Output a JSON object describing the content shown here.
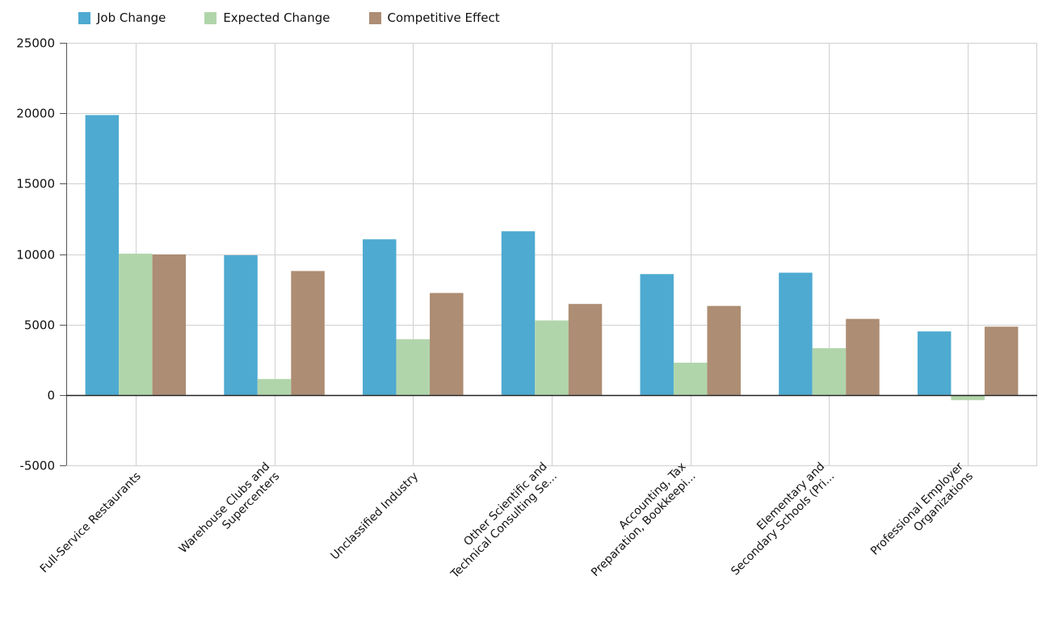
{
  "chart_data": {
    "type": "bar",
    "title": "",
    "xlabel": "",
    "ylabel": "",
    "ylim": [
      -5000,
      25000
    ],
    "yticks": [
      -5000,
      0,
      5000,
      10000,
      15000,
      20000,
      25000
    ],
    "grid": true,
    "legend_position": "top-left",
    "categories": [
      [
        "Full-Service Restaurants"
      ],
      [
        "Warehouse Clubs and",
        "Supercenters"
      ],
      [
        "Unclassified Industry"
      ],
      [
        "Other Scientific and",
        "Technical Consulting Se..."
      ],
      [
        "Accounting, Tax",
        "Preparation, Bookkeepi..."
      ],
      [
        "Elementary and",
        "Secondary Schools (Pri..."
      ],
      [
        "Professional Employer",
        "Organizations"
      ]
    ],
    "series": [
      {
        "name": "Job Change",
        "color": "#4eaad1",
        "values": [
          19870,
          9920,
          11050,
          11620,
          8580,
          8680,
          4510
        ]
      },
      {
        "name": "Expected Change",
        "color": "#b1d5ab",
        "values": [
          10030,
          1130,
          3960,
          5290,
          2290,
          3320,
          -370
        ]
      },
      {
        "name": "Competitive Effect",
        "color": "#ad8d73",
        "values": [
          9980,
          8800,
          7240,
          6460,
          6320,
          5400,
          4850
        ]
      }
    ]
  }
}
